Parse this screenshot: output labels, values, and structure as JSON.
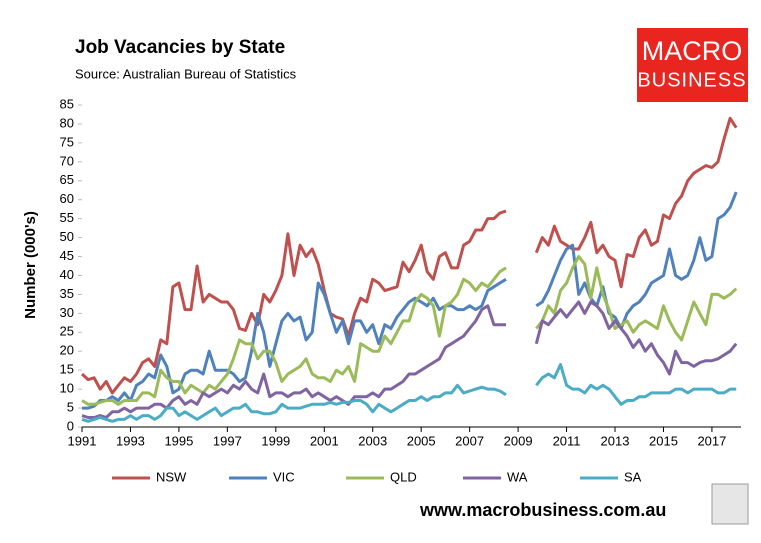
{
  "chart_data": {
    "type": "line",
    "title": "Job Vacancies by State",
    "subtitle": "Source: Australian Bureau of Statistics",
    "y_label": "Number (000's)",
    "logo": [
      "MACRO",
      "BUSINESS"
    ],
    "footer": "www.macrobusiness.com.au",
    "x": [
      1991,
      1991.25,
      1991.5,
      1991.75,
      1992,
      1992.25,
      1992.5,
      1992.75,
      1993,
      1993.25,
      1993.5,
      1993.75,
      1994,
      1994.25,
      1994.5,
      1994.75,
      1995,
      1995.25,
      1995.5,
      1995.75,
      1996,
      1996.25,
      1996.5,
      1996.75,
      1997,
      1997.25,
      1997.5,
      1997.75,
      1998,
      1998.25,
      1998.5,
      1998.75,
      1999,
      1999.25,
      1999.5,
      1999.75,
      2000,
      2000.25,
      2000.5,
      2000.75,
      2001,
      2001.25,
      2001.5,
      2001.75,
      2002,
      2002.25,
      2002.5,
      2002.75,
      2003,
      2003.25,
      2003.5,
      2003.75,
      2004,
      2004.25,
      2004.5,
      2004.75,
      2005,
      2005.25,
      2005.5,
      2005.75,
      2006,
      2006.25,
      2006.5,
      2006.75,
      2007,
      2007.25,
      2007.5,
      2007.75,
      2008,
      2008.25,
      2008.5,
      2009,
      2009.75,
      2010,
      2010.25,
      2010.5,
      2010.75,
      2011,
      2011.25,
      2011.5,
      2011.75,
      2012,
      2012.25,
      2012.5,
      2012.75,
      2013,
      2013.25,
      2013.5,
      2013.75,
      2014,
      2014.25,
      2014.5,
      2014.75,
      2015,
      2015.25,
      2015.5,
      2015.75,
      2016,
      2016.25,
      2016.5,
      2016.75,
      2017,
      2017.25,
      2017.5,
      2017.75,
      2018
    ],
    "series": [
      {
        "name": "NSW",
        "color": "#c0504d",
        "values": [
          14,
          12.5,
          13,
          10,
          12,
          9,
          11,
          13,
          12,
          14,
          17,
          18,
          16,
          23,
          22,
          37,
          38,
          31,
          31,
          42.5,
          33,
          35,
          34,
          33,
          33,
          31,
          26,
          25.5,
          30,
          27,
          35,
          33,
          36,
          40,
          51,
          40,
          48,
          45,
          47,
          43,
          36,
          30,
          29,
          28.5,
          24,
          30,
          34,
          33,
          39,
          38,
          36,
          36.5,
          37,
          43.5,
          41,
          44,
          48,
          41,
          39,
          45,
          46,
          42,
          42,
          48,
          49,
          52,
          52,
          55,
          55,
          56.5,
          57,
          null,
          46,
          50,
          48,
          53,
          49,
          48,
          47,
          47,
          50,
          54,
          46,
          48,
          45,
          44,
          37,
          45.5,
          45,
          50,
          52,
          48,
          49,
          56,
          55,
          59,
          61,
          65,
          67,
          68,
          69,
          68.5,
          70,
          76,
          81.5,
          79
        ]
      },
      {
        "name": "VIC",
        "color": "#4f81bd",
        "values": [
          5,
          5,
          5.5,
          7,
          7,
          8,
          7,
          9,
          7,
          11,
          12,
          14,
          13,
          19,
          16,
          9,
          10,
          14,
          15,
          15,
          14,
          20,
          15,
          15,
          15,
          14,
          12,
          13,
          20,
          30,
          25,
          16,
          22,
          28,
          30,
          28,
          29,
          23,
          25,
          38,
          35,
          30,
          25,
          28,
          22,
          28,
          28,
          25,
          27,
          22,
          27,
          26,
          29,
          31,
          33,
          34,
          33,
          32,
          34,
          31,
          32,
          32,
          31,
          31,
          32,
          31,
          32,
          36,
          37,
          38,
          39,
          null,
          32,
          33,
          36,
          40,
          44,
          47,
          48,
          35,
          38,
          34,
          32,
          37,
          30,
          29,
          26,
          30,
          32,
          33,
          35,
          38,
          39,
          40,
          47,
          40,
          39,
          40,
          44,
          50,
          44,
          45,
          55,
          56,
          58,
          62
        ]
      },
      {
        "name": "QLD",
        "color": "#9bbb59",
        "values": [
          7,
          6,
          6,
          6.5,
          7,
          7,
          6,
          7,
          7,
          7,
          9,
          9,
          8,
          15,
          13,
          12,
          12,
          9,
          11,
          10,
          9,
          11,
          10,
          12,
          14,
          18,
          23,
          22,
          22,
          18,
          20,
          20,
          17,
          12,
          14,
          15,
          16,
          18,
          14,
          13,
          13,
          12,
          15,
          14,
          16,
          12,
          22,
          21,
          20,
          20,
          24,
          22,
          25,
          28,
          28,
          33,
          35,
          34,
          32,
          24,
          32,
          33,
          35,
          39,
          38,
          36,
          38,
          37,
          39,
          41,
          42,
          null,
          26,
          28,
          32,
          30,
          36,
          38,
          42,
          45,
          43,
          34,
          42,
          35,
          31,
          26,
          27,
          28,
          25,
          27,
          28,
          27,
          26,
          32,
          28,
          25,
          23,
          28,
          33,
          30,
          27,
          35,
          35,
          34,
          35,
          36.5
        ]
      },
      {
        "name": "WA",
        "color": "#8064a2",
        "values": [
          3,
          2.5,
          2.5,
          3,
          2.5,
          4,
          4,
          5,
          4,
          5,
          5,
          5,
          6,
          6,
          5,
          7,
          8,
          6,
          7,
          6,
          9,
          8,
          9,
          10,
          9,
          11,
          10,
          12,
          10,
          9,
          14,
          8,
          9,
          9,
          8,
          9,
          9,
          10,
          8,
          9,
          8,
          7,
          8,
          7,
          6,
          8,
          8,
          8,
          9,
          8,
          10,
          10,
          11,
          12,
          14,
          14,
          15,
          16,
          17,
          18,
          21,
          22,
          23,
          24,
          26,
          28,
          31,
          32,
          27,
          27,
          27,
          null,
          22,
          28,
          27,
          29,
          31,
          29,
          31,
          33,
          30,
          33,
          32,
          30,
          26,
          28,
          26,
          24,
          21,
          23,
          20,
          22,
          19,
          17,
          14,
          20,
          17,
          17,
          16,
          17,
          17.5,
          17.5,
          18,
          19,
          20,
          22
        ]
      },
      {
        "name": "SA",
        "color": "#4bacc6",
        "values": [
          2,
          1.5,
          2,
          2.5,
          2,
          1.5,
          2,
          2,
          3,
          2,
          3,
          3,
          2,
          3,
          5,
          5,
          3,
          4,
          3,
          2,
          3,
          4,
          5,
          3,
          4,
          5,
          5,
          6,
          4,
          4,
          3.5,
          3.5,
          4,
          6,
          5,
          5,
          5,
          5.5,
          6,
          6,
          6,
          6.5,
          6,
          6.5,
          6.5,
          7,
          7,
          6,
          4,
          6,
          5,
          4,
          5,
          6,
          7,
          7,
          8,
          7,
          8,
          8,
          9,
          9,
          11,
          9,
          9.5,
          10,
          10.5,
          10,
          10,
          9.5,
          8.5,
          null,
          11,
          13,
          14,
          13,
          16.5,
          11,
          10,
          10,
          9,
          11,
          10,
          11,
          10,
          8,
          6,
          7,
          7,
          8,
          8,
          9,
          9,
          9,
          9,
          10,
          10,
          9,
          10,
          10,
          10,
          10,
          9,
          9,
          10,
          10
        ]
      }
    ],
    "xlim": [
      1991,
      2018.2
    ],
    "xticks": [
      1991,
      1993,
      1995,
      1997,
      1999,
      2001,
      2003,
      2005,
      2007,
      2009,
      2011,
      2013,
      2015,
      2017
    ],
    "ylim": [
      0,
      85
    ],
    "yticks": [
      0,
      5,
      10,
      15,
      20,
      25,
      30,
      35,
      40,
      45,
      50,
      55,
      60,
      65,
      70,
      75,
      80,
      85
    ],
    "grid": false,
    "legend": "bottom"
  }
}
